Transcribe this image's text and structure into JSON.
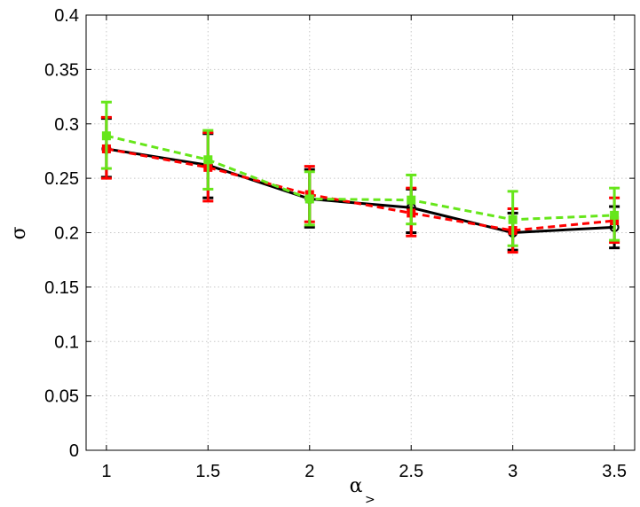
{
  "chart_data": {
    "type": "line",
    "title": "",
    "xlabel": "α",
    "xlabel_subscript": ">",
    "ylabel": "σ",
    "x": [
      1,
      1.5,
      2,
      2.5,
      3,
      3.5
    ],
    "xlim": [
      0.9,
      3.6
    ],
    "ylim": [
      0,
      0.4
    ],
    "xticks": [
      "1",
      "1.5",
      "2",
      "2.5",
      "3",
      "3.5"
    ],
    "yticks": [
      "0",
      "0.05",
      "0.1",
      "0.15",
      "0.2",
      "0.25",
      "0.3",
      "0.35",
      "0.4"
    ],
    "grid": true,
    "legend": false,
    "series": [
      {
        "color": "#000000",
        "line_style": "solid",
        "marker": "circle",
        "values": [
          0.277,
          0.262,
          0.231,
          0.223,
          0.2,
          0.205
        ],
        "error_low": [
          0.251,
          0.232,
          0.205,
          0.2,
          0.184,
          0.186
        ],
        "error_high": [
          0.305,
          0.291,
          0.258,
          0.24,
          0.218,
          0.224
        ]
      },
      {
        "color": "#ff0000",
        "line_style": "dashed",
        "marker": "square",
        "values": [
          0.277,
          0.26,
          0.235,
          0.218,
          0.202,
          0.211
        ],
        "error_low": [
          0.25,
          0.229,
          0.21,
          0.197,
          0.182,
          0.191
        ],
        "error_high": [
          0.306,
          0.292,
          0.261,
          0.241,
          0.222,
          0.232
        ]
      },
      {
        "color": "#66e61a",
        "line_style": "dashed",
        "marker": "square",
        "values": [
          0.289,
          0.267,
          0.231,
          0.23,
          0.212,
          0.216
        ],
        "error_low": [
          0.259,
          0.24,
          0.207,
          0.208,
          0.188,
          0.193
        ],
        "error_high": [
          0.32,
          0.294,
          0.256,
          0.253,
          0.238,
          0.241
        ]
      }
    ]
  }
}
